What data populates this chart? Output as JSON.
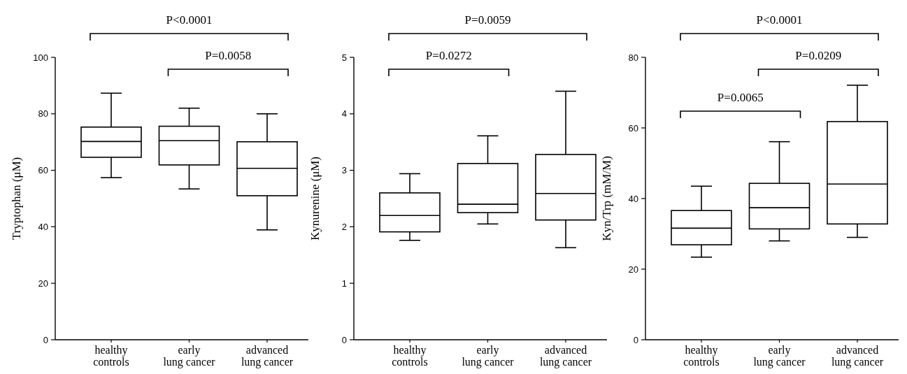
{
  "chart_data": [
    {
      "type": "box",
      "ylabel": "Tryptophan (μM)",
      "categories": [
        "healthy controls",
        "early lung cancer",
        "advanced lung cancer"
      ],
      "ylim": [
        0,
        100
      ],
      "yticks": [
        0,
        20,
        40,
        60,
        80,
        100
      ],
      "annotations": [
        "P<0.0001",
        "P=0.0058"
      ],
      "boxes": [
        {
          "low": 57.4,
          "q1": 64.6,
          "median": 70.2,
          "q3": 75.3,
          "high": 87.3
        },
        {
          "low": 53.4,
          "q1": 61.9,
          "median": 70.5,
          "q3": 75.6,
          "high": 82
        },
        {
          "low": 38.9,
          "q1": 51,
          "median": 60.7,
          "q3": 70.1,
          "high": 80
        }
      ]
    },
    {
      "type": "box",
      "ylabel": "Kynurenine (μM)",
      "categories": [
        "healthy controls",
        "early lung cancer",
        "advanced lung cancer"
      ],
      "ylim": [
        0,
        5
      ],
      "yticks": [
        0,
        1,
        2,
        3,
        4,
        5
      ],
      "annotations": [
        "P=0.0059",
        "P=0.0272"
      ],
      "boxes": [
        {
          "low": 1.76,
          "q1": 1.91,
          "median": 2.2,
          "q3": 2.6,
          "high": 2.94
        },
        {
          "low": 2.05,
          "q1": 2.25,
          "median": 2.4,
          "q3": 3.12,
          "high": 3.61
        },
        {
          "low": 1.63,
          "q1": 2.12,
          "median": 2.59,
          "q3": 3.28,
          "high": 4.4
        }
      ]
    },
    {
      "type": "box",
      "ylabel": "Kyn/Trp (mM/M)",
      "categories": [
        "healthy controls",
        "early lung cancer",
        "advanced lung cancer"
      ],
      "ylim": [
        0,
        80
      ],
      "yticks": [
        0,
        20,
        40,
        60,
        80
      ],
      "annotations": [
        "P<0.0001",
        "P=0.0209",
        "P=0.0065"
      ],
      "boxes": [
        {
          "low": 23.4,
          "q1": 26.9,
          "median": 31.6,
          "q3": 36.6,
          "high": 43.5
        },
        {
          "low": 28,
          "q1": 31.4,
          "median": 37.4,
          "q3": 44.3,
          "high": 56.1
        },
        {
          "low": 29,
          "q1": 32.8,
          "median": 44.1,
          "q3": 61.8,
          "high": 72.1
        }
      ]
    }
  ]
}
